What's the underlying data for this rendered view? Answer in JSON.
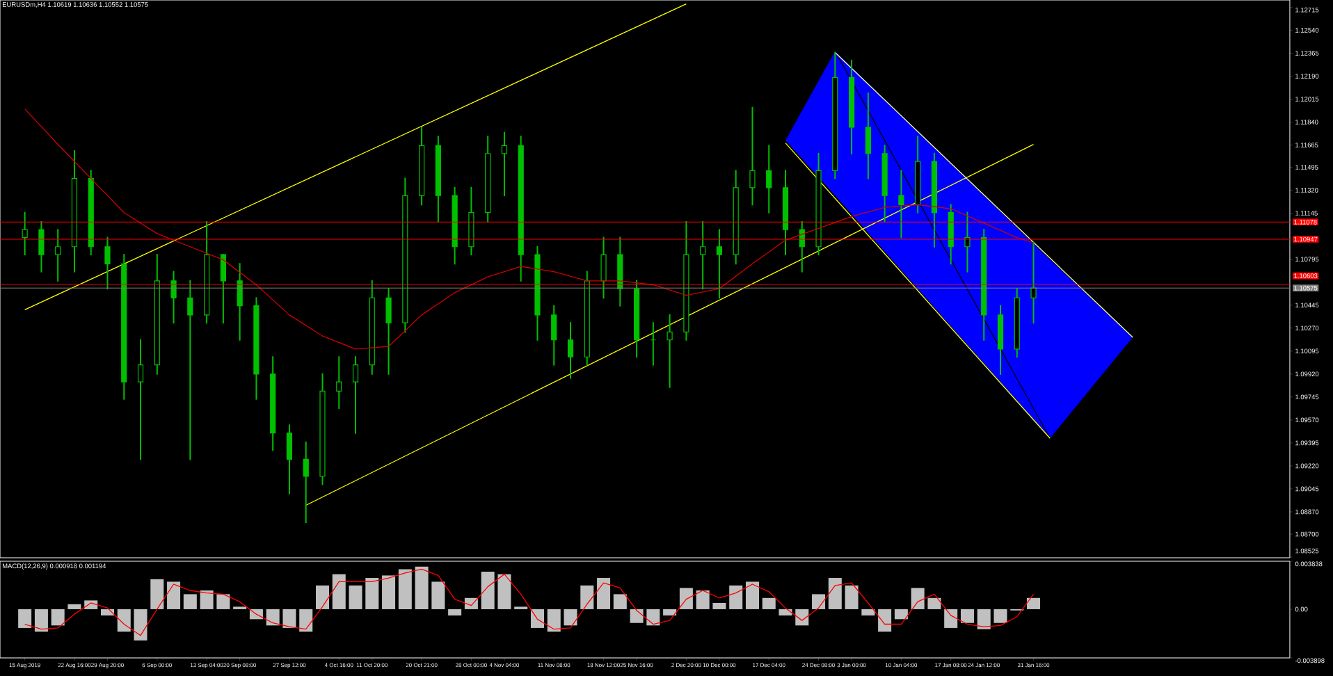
{
  "chart_data": [
    {
      "type": "candlestick",
      "title": "EURUSDm,H4 1.10619 1.10636 1.10552 1.10575",
      "color": "#00c000",
      "categories": [
        null,
        null,
        null,
        null,
        null,
        null,
        null,
        null,
        null,
        null,
        null,
        null,
        null,
        null,
        null,
        null,
        null,
        null,
        null,
        null,
        null,
        null,
        null,
        null,
        null,
        null,
        null,
        null,
        null,
        null,
        null,
        null,
        null,
        null,
        null,
        null,
        null,
        null,
        null,
        null,
        null,
        null,
        null,
        null,
        null,
        null,
        null,
        null,
        null,
        null,
        null,
        null,
        null,
        null,
        null,
        null,
        null,
        null,
        null,
        null,
        null,
        null,
        null,
        null,
        null,
        null,
        null,
        null,
        null,
        null,
        null,
        null,
        null,
        null,
        null,
        null,
        null
      ],
      "ohlc": [
        [
          1.1096,
          1.1115,
          1.1083,
          1.1102
        ],
        [
          1.1102,
          1.1108,
          1.107,
          1.1083
        ],
        [
          1.1083,
          1.1102,
          1.1063,
          1.1089
        ],
        [
          1.1089,
          1.1162,
          1.107,
          1.1141
        ],
        [
          1.1141,
          1.1147,
          1.1083,
          1.1089
        ],
        [
          1.1089,
          1.1096,
          1.1057,
          1.1076
        ],
        [
          1.1076,
          1.1083,
          1.0973,
          1.0986
        ],
        [
          1.0986,
          1.1018,
          1.0927,
          1.0999
        ],
        [
          1.0999,
          1.1083,
          1.0992,
          1.1063
        ],
        [
          1.1063,
          1.107,
          1.1031,
          1.105
        ],
        [
          1.105,
          1.1063,
          1.0927,
          1.1037
        ],
        [
          1.1037,
          1.1108,
          1.1031,
          1.1083
        ],
        [
          1.1083,
          1.1083,
          1.1031,
          1.1063
        ],
        [
          1.1063,
          1.1076,
          1.1018,
          1.1044
        ],
        [
          1.1044,
          1.105,
          1.0973,
          1.0992
        ],
        [
          1.0992,
          1.1005,
          1.0934,
          1.0947
        ],
        [
          1.0947,
          1.0953,
          1.0901,
          1.0927
        ],
        [
          1.0927,
          1.094,
          1.0879,
          1.0914
        ],
        [
          1.0914,
          1.0992,
          1.0908,
          1.0979
        ],
        [
          1.0979,
          1.1005,
          1.0966,
          1.0986
        ],
        [
          1.0986,
          1.1005,
          1.0947,
          1.0999
        ],
        [
          1.0999,
          1.1063,
          1.0992,
          1.105
        ],
        [
          1.105,
          1.1057,
          1.0992,
          1.1031
        ],
        [
          1.1031,
          1.1141,
          1.1024,
          1.1128
        ],
        [
          1.1128,
          1.118,
          1.1121,
          1.1166
        ],
        [
          1.1166,
          1.1173,
          1.1108,
          1.1128
        ],
        [
          1.1128,
          1.1134,
          1.1076,
          1.1089
        ],
        [
          1.1089,
          1.1134,
          1.1083,
          1.1115
        ],
        [
          1.1115,
          1.1173,
          1.1108,
          1.116
        ],
        [
          1.116,
          1.1176,
          1.1128,
          1.1166
        ],
        [
          1.1166,
          1.1173,
          1.1063,
          1.1083
        ],
        [
          1.1083,
          1.1089,
          1.1018,
          1.1037
        ],
        [
          1.1037,
          1.1044,
          1.0999,
          1.1018
        ],
        [
          1.1018,
          1.1031,
          1.0989,
          1.1005
        ],
        [
          1.1005,
          1.107,
          1.0999,
          1.1063
        ],
        [
          1.1063,
          1.1096,
          1.105,
          1.1083
        ],
        [
          1.1083,
          1.1096,
          1.1044,
          1.1057
        ],
        [
          1.1057,
          1.1063,
          1.1005,
          1.1018
        ],
        [
          1.1018,
          1.1031,
          1.0999,
          1.1018
        ],
        [
          1.1018,
          1.1037,
          1.0982,
          1.1024
        ],
        [
          1.1024,
          1.1108,
          1.1018,
          1.1083
        ],
        [
          1.1083,
          1.1108,
          1.1057,
          1.1089
        ],
        [
          1.1089,
          1.1102,
          1.105,
          1.1083
        ],
        [
          1.1083,
          1.1147,
          1.1076,
          1.1134
        ],
        [
          1.1134,
          1.1195,
          1.1121,
          1.1147
        ],
        [
          1.1147,
          1.1166,
          1.1115,
          1.1134
        ],
        [
          1.1134,
          1.1147,
          1.1083,
          1.1102
        ],
        [
          1.1102,
          1.1108,
          1.107,
          1.1089
        ],
        [
          1.1089,
          1.116,
          1.1083,
          1.1147
        ],
        [
          1.1147,
          1.1237,
          1.1141,
          1.1218
        ],
        [
          1.1218,
          1.1231,
          1.116,
          1.118
        ],
        [
          1.118,
          1.1206,
          1.1141,
          1.116
        ],
        [
          1.116,
          1.1166,
          1.1108,
          1.1128
        ],
        [
          1.1128,
          1.1147,
          1.1096,
          1.1121
        ],
        [
          1.1121,
          1.1173,
          1.1115,
          1.1154
        ],
        [
          1.1154,
          1.116,
          1.1089,
          1.1115
        ],
        [
          1.1115,
          1.1121,
          1.1076,
          1.1089
        ],
        [
          1.1089,
          1.1115,
          1.107,
          1.1096
        ],
        [
          1.1096,
          1.1102,
          1.1018,
          1.1037
        ],
        [
          1.1037,
          1.1044,
          1.0992,
          1.1011
        ],
        [
          1.1011,
          1.1057,
          1.1005,
          1.105
        ],
        [
          1.105,
          1.1092,
          1.1031,
          1.10575
        ],
        null,
        null,
        null,
        null,
        null,
        null,
        null,
        null,
        null,
        null,
        null,
        null,
        null,
        null,
        null
      ],
      "series": [
        {
          "type": "line",
          "color": "#000000",
          "values": [
            null,
            null,
            null,
            null,
            null,
            null,
            null,
            null,
            null,
            null,
            null,
            null,
            null,
            null,
            null,
            null,
            null,
            null,
            null,
            null,
            null,
            null,
            null,
            null,
            null,
            null,
            null,
            null,
            null,
            null,
            null,
            null,
            null,
            null,
            null,
            null,
            null,
            null,
            null,
            null,
            null,
            null,
            null,
            null,
            null,
            null,
            null,
            null,
            null,
            1.1238,
            null,
            null,
            null,
            null,
            null,
            null,
            null,
            null,
            null,
            null,
            null,
            null,
            1.0943,
            null,
            null,
            null,
            null,
            null,
            null,
            null,
            null,
            null,
            null,
            null,
            null,
            null,
            null
          ],
          "upper": [
            null,
            null,
            null,
            null,
            null,
            null,
            null,
            null,
            null,
            null,
            null,
            null,
            null,
            null,
            null,
            null,
            null,
            null,
            null,
            null,
            null,
            null,
            null,
            null,
            null,
            null,
            null,
            null,
            null,
            null,
            null,
            null,
            null,
            null,
            null,
            null,
            null,
            null,
            null,
            null,
            null,
            null,
            null,
            null,
            null,
            null,
            1.117,
            null,
            null,
            1.1238,
            null,
            null,
            null,
            null,
            null,
            null,
            null,
            null,
            null,
            null,
            null,
            null,
            1.1079,
            null,
            null,
            null,
            null,
            1.102,
            null,
            null,
            null,
            null,
            null,
            null,
            null,
            null,
            null
          ],
          "lower": [
            null,
            null,
            null,
            null,
            null,
            null,
            null,
            null,
            null,
            null,
            null,
            null,
            null,
            null,
            null,
            null,
            null,
            null,
            null,
            null,
            null,
            null,
            null,
            null,
            null,
            null,
            null,
            null,
            null,
            null,
            null,
            null,
            null,
            null,
            null,
            null,
            null,
            null,
            null,
            null,
            null,
            null,
            null,
            null,
            null,
            null,
            1.117,
            null,
            null,
            1.1128,
            null,
            null,
            null,
            null,
            null,
            null,
            null,
            null,
            null,
            null,
            null,
            null,
            1.0943,
            null,
            null,
            null,
            null,
            1.102,
            null,
            null,
            null,
            null,
            null,
            null,
            null,
            null,
            null
          ]
        },
        {
          "type": "line",
          "color": "#d00000",
          "values": [
            1.1194,
            null,
            1.1167,
            null,
            1.1141,
            null,
            1.1115,
            null,
            1.1099,
            null,
            1.1089,
            null,
            1.1079,
            null,
            1.106,
            null,
            1.1037,
            null,
            1.1021,
            null,
            1.1011,
            null,
            1.1013,
            null,
            1.1037,
            null,
            1.1054,
            null,
            1.1066,
            null,
            1.1074,
            null,
            1.107,
            null,
            1.1063,
            null,
            1.1063,
            null,
            1.106,
            null,
            1.1052,
            null,
            1.1057,
            null,
            1.1076,
            null,
            1.1094,
            null,
            1.1103,
            null,
            1.1112,
            null,
            1.1119,
            null,
            1.1121,
            null,
            1.1118,
            null,
            1.1107,
            null,
            1.1096,
            1.1092,
            null,
            null,
            null,
            null,
            null,
            null,
            null,
            null,
            null,
            null,
            null,
            null,
            null,
            null,
            null
          ]
        },
        {
          "type": "line",
          "color": "#ffff00",
          "values": [
            1.1041,
            null,
            null,
            null,
            null,
            null,
            null,
            null,
            null,
            null,
            null,
            null,
            null,
            null,
            null,
            null,
            null,
            null,
            null,
            null,
            null,
            null,
            null,
            null,
            null,
            null,
            null,
            null,
            null,
            null,
            null,
            null,
            null,
            null,
            null,
            null,
            null,
            null,
            null,
            null,
            1.1274,
            null,
            null,
            null,
            null,
            null,
            null,
            null,
            null,
            null,
            null,
            null,
            null,
            null,
            null,
            null,
            null,
            null,
            null,
            null,
            null,
            null,
            null,
            null,
            null,
            null,
            null,
            null,
            null,
            null,
            null,
            null,
            null,
            null,
            null,
            null,
            null
          ]
        },
        {
          "type": "line",
          "color": "#ffff00",
          "values": [
            null,
            null,
            null,
            null,
            null,
            null,
            null,
            null,
            null,
            null,
            null,
            null,
            null,
            null,
            null,
            null,
            null,
            1.0892,
            null,
            null,
            null,
            null,
            null,
            null,
            null,
            null,
            null,
            null,
            null,
            null,
            null,
            null,
            null,
            null,
            null,
            null,
            null,
            null,
            null,
            null,
            null,
            null,
            null,
            null,
            null,
            null,
            null,
            null,
            null,
            null,
            null,
            null,
            null,
            null,
            null,
            null,
            null,
            null,
            null,
            null,
            null,
            1.1167,
            null,
            null,
            null,
            null,
            null,
            null,
            null,
            null,
            null,
            null,
            null,
            null,
            null,
            null,
            null
          ]
        },
        {
          "type": "line",
          "color": "#ffff00",
          "values": [
            null,
            null,
            null,
            null,
            null,
            null,
            null,
            null,
            null,
            null,
            null,
            null,
            null,
            null,
            null,
            null,
            null,
            null,
            null,
            null,
            null,
            null,
            null,
            null,
            null,
            null,
            null,
            null,
            null,
            null,
            null,
            null,
            null,
            null,
            null,
            null,
            null,
            null,
            null,
            null,
            null,
            null,
            null,
            null,
            null,
            null,
            1.1168,
            null,
            null,
            null,
            null,
            null,
            null,
            null,
            null,
            null,
            null,
            null,
            null,
            null,
            null,
            null,
            1.0943,
            null,
            null,
            null,
            null,
            null,
            null,
            null,
            null,
            null,
            null,
            null,
            null,
            null,
            null
          ]
        },
        {
          "type": "line",
          "color": "#ffffa0",
          "values": [
            null,
            null,
            null,
            null,
            null,
            null,
            null,
            null,
            null,
            null,
            null,
            null,
            null,
            null,
            null,
            null,
            null,
            null,
            null,
            null,
            null,
            null,
            null,
            null,
            null,
            null,
            null,
            null,
            null,
            null,
            null,
            null,
            null,
            null,
            null,
            null,
            null,
            null,
            null,
            null,
            null,
            null,
            null,
            null,
            null,
            null,
            null,
            null,
            null,
            1.1237,
            null,
            null,
            null,
            null,
            null,
            null,
            null,
            null,
            null,
            null,
            null,
            null,
            null,
            null,
            null,
            null,
            null,
            1.102,
            null,
            null,
            null,
            null,
            null,
            null,
            null,
            null,
            null
          ]
        }
      ],
      "ref_lines": [
        {
          "axis": "y",
          "value": 1.11078,
          "label": "1.11078",
          "color": "#ff0000"
        },
        {
          "axis": "y",
          "value": 1.10947,
          "label": "1.10947",
          "color": "#ff0000"
        },
        {
          "axis": "y",
          "value": 1.10603,
          "label": "1.10603",
          "color": "#ff0000"
        },
        {
          "axis": "y",
          "value": 1.10575,
          "label": "1.10575",
          "color": "#808080"
        }
      ],
      "ylim": [
        1.0852,
        1.1277
      ],
      "tick_labels": "y",
      "yticks": [
        {
          "value": 1.12715,
          "label": "1.12715"
        },
        {
          "value": 1.1254,
          "label": "1.12540"
        },
        {
          "value": 1.12365,
          "label": "1.12365"
        },
        {
          "value": 1.1219,
          "label": "1.12190"
        },
        {
          "value": 1.12015,
          "label": "1.12015"
        },
        {
          "value": 1.1184,
          "label": "1.11840"
        },
        {
          "value": 1.11665,
          "label": "1.11665"
        },
        {
          "value": 1.11495,
          "label": "1.11495"
        },
        {
          "value": 1.1132,
          "label": "1.11320"
        },
        {
          "value": 1.11145,
          "label": "1.11145"
        },
        {
          "value": 1.10795,
          "label": "1.10795"
        },
        {
          "value": 1.10445,
          "label": "1.10445"
        },
        {
          "value": 1.1027,
          "label": "1.10270"
        },
        {
          "value": 1.10095,
          "label": "1.10095"
        },
        {
          "value": 1.0992,
          "label": "1.09920"
        },
        {
          "value": 1.09745,
          "label": "1.09745"
        },
        {
          "value": 1.0957,
          "label": "1.09570"
        },
        {
          "value": 1.09395,
          "label": "1.09395"
        },
        {
          "value": 1.0922,
          "label": "1.09220"
        },
        {
          "value": 1.09045,
          "label": "1.09045"
        },
        {
          "value": 1.0887,
          "label": "1.08870"
        },
        {
          "value": 1.087,
          "label": "1.08700"
        },
        {
          "value": 1.08525,
          "label": "1.08525"
        }
      ]
    },
    {
      "type": "bar",
      "title": "MACD(12,26,9) 0.000918 0.001194",
      "categories": [
        "15 Aug 2019",
        null,
        null,
        "22 Aug 16:00",
        null,
        "29 Aug 20:00",
        null,
        null,
        "6 Sep 00:00",
        null,
        null,
        "13 Sep 04:00",
        null,
        "20 Sep 08:00",
        null,
        null,
        "27 Sep 12:00",
        null,
        null,
        "4 Oct 16:00",
        null,
        "11 Oct 20:00",
        null,
        null,
        "20 Oct 21:00",
        null,
        null,
        "28 Oct 00:00",
        null,
        "4 Nov 04:00",
        null,
        null,
        "11 Nov 08:00",
        null,
        null,
        "18 Nov 12:00",
        null,
        "25 Nov 16:00",
        null,
        null,
        "2 Dec 20:00",
        null,
        "10 Dec 00:00",
        null,
        null,
        "17 Dec 04:00",
        null,
        null,
        "24 Dec 08:00",
        null,
        "3 Jan 00:00",
        null,
        null,
        "10 Jan 04:00",
        null,
        null,
        "17 Jan 08:00",
        null,
        "24 Jan 12:00",
        null,
        null,
        "31 Jan 16:00",
        null,
        null,
        null,
        null,
        null,
        null,
        null,
        null,
        null,
        null,
        null,
        null,
        null,
        null,
        null
      ],
      "series": [
        {
          "type": "bar",
          "color": "#c0c0c0",
          "values": [
            -0.0015,
            -0.0018,
            -0.0013,
            0.0004,
            0.0007,
            -0.0005,
            -0.0018,
            -0.0025,
            0.0024,
            0.0022,
            0.0012,
            0.0015,
            0.0012,
            0.0002,
            -0.0008,
            -0.0013,
            -0.0015,
            -0.0018,
            0.0019,
            0.0028,
            0.0019,
            0.0025,
            0.0027,
            0.0032,
            0.0034,
            0.0022,
            -0.0005,
            0.0009,
            0.003,
            0.0028,
            0.0002,
            -0.0015,
            -0.0018,
            -0.0013,
            0.0019,
            0.0025,
            0.0012,
            -0.0011,
            -0.0013,
            -0.0005,
            0.0017,
            0.0015,
            0.0005,
            0.0019,
            0.0022,
            0.0009,
            -0.0005,
            -0.0013,
            0.0012,
            0.0025,
            0.0019,
            -0.0005,
            -0.0018,
            -0.0008,
            0.0017,
            0.0009,
            -0.0015,
            -0.0011,
            -0.0016,
            -0.0011,
            -0.0001,
            0.0009,
            null,
            null,
            null,
            null,
            null,
            null,
            null,
            null,
            null,
            null,
            null,
            null,
            null,
            null,
            null
          ]
        },
        {
          "type": "line",
          "color": "#ff0000",
          "values": [
            -0.0012,
            -0.0016,
            -0.0015,
            -0.0004,
            0.0005,
            0.0001,
            -0.0012,
            -0.0021,
            0.0,
            0.002,
            0.0015,
            0.0013,
            0.0012,
            0.0006,
            -0.0004,
            -0.0011,
            -0.0014,
            -0.0016,
            0.0002,
            0.0022,
            0.0022,
            0.0022,
            0.0025,
            0.0029,
            0.0032,
            0.0027,
            0.0008,
            0.0003,
            0.0018,
            0.0028,
            0.0012,
            -0.0008,
            -0.0016,
            -0.0015,
            0.0004,
            0.0021,
            0.0017,
            -0.0001,
            -0.0012,
            -0.0009,
            0.0008,
            0.0015,
            0.0009,
            0.0013,
            0.002,
            0.0014,
            0.0001,
            -0.0009,
            0.0001,
            0.0019,
            0.0021,
            0.0005,
            -0.0012,
            -0.0012,
            0.0006,
            0.0012,
            -0.0005,
            -0.0012,
            -0.0014,
            -0.0013,
            -0.0006,
            0.0012,
            null,
            null,
            null,
            null,
            null,
            null,
            null,
            null,
            null,
            null,
            null,
            null,
            null,
            null,
            null
          ]
        }
      ],
      "ylim": [
        -0.003898,
        0.003838
      ],
      "yticks": [
        {
          "value": 0.003838,
          "label": "0.003838"
        },
        {
          "value": 0,
          "label": "0.00"
        },
        {
          "value": -0.003898,
          "label": "-0.003898"
        }
      ]
    }
  ]
}
